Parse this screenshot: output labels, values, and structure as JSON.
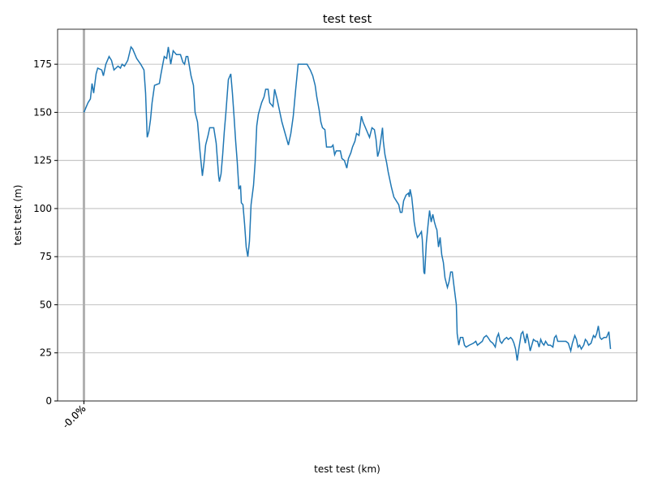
{
  "chart_data": {
    "type": "line",
    "title": "test test",
    "xlabel": "test test (km)",
    "ylabel": "test test (m)",
    "x": [
      0,
      5,
      8,
      10,
      12,
      15,
      17,
      22,
      24,
      27,
      31,
      34,
      37,
      42,
      45,
      47,
      50,
      54,
      58,
      60,
      65,
      70,
      74,
      76,
      78,
      80,
      82,
      84,
      87,
      93,
      95,
      99,
      102,
      104,
      107,
      110,
      114,
      119,
      122,
      124,
      126,
      128,
      130,
      132,
      135,
      137,
      140,
      143,
      146,
      148,
      150,
      153,
      155,
      160,
      163,
      166,
      167,
      169,
      171,
      173,
      175,
      178,
      181,
      183,
      185,
      187,
      189,
      191,
      193,
      194,
      196,
      198,
      200,
      202,
      204,
      206,
      209,
      211,
      213,
      215,
      217,
      219,
      222,
      224,
      227,
      229,
      233,
      235,
      238,
      241,
      244,
      248,
      252,
      255,
      258,
      261,
      264,
      268,
      275,
      279,
      282,
      285,
      287,
      290,
      292,
      294,
      297,
      299,
      305,
      307,
      309,
      311,
      316,
      318,
      321,
      324,
      326,
      329,
      331,
      334,
      336,
      339,
      342,
      344,
      348,
      352,
      355,
      358,
      360,
      362,
      364,
      366,
      368,
      369,
      371,
      373,
      375,
      379,
      382,
      385,
      388,
      390,
      392,
      394,
      397,
      400,
      401,
      402,
      404,
      406,
      407,
      409,
      411,
      413,
      416,
      417,
      419,
      420,
      422,
      424,
      426,
      428,
      430,
      432,
      434,
      435,
      437,
      439,
      441,
      443,
      445,
      448,
      450,
      452,
      454,
      456,
      459,
      460,
      462,
      464,
      467,
      469,
      471,
      475,
      480,
      483,
      485,
      488,
      491,
      493,
      496,
      498,
      501,
      504,
      507,
      509,
      511,
      513,
      515,
      518,
      521,
      523,
      526,
      528,
      530,
      532,
      534,
      536,
      539,
      541,
      544,
      546,
      548,
      550,
      552,
      554,
      557,
      559,
      561,
      563,
      565,
      567,
      569,
      572,
      575,
      578,
      580,
      582,
      584,
      587,
      590,
      594,
      597,
      600,
      602,
      605,
      607,
      609,
      611,
      613,
      616,
      618,
      620,
      622,
      625,
      628,
      630,
      632,
      634,
      636,
      638,
      641,
      644,
      647,
      649
    ],
    "series": [
      {
        "name": "test test",
        "color": "#1f77b4",
        "values": [
          150,
          155,
          157,
          165,
          160,
          170,
          173,
          172,
          169,
          175,
          179,
          177,
          172,
          174,
          173,
          175,
          174,
          177,
          184,
          183,
          178,
          175,
          172,
          160,
          137,
          140,
          146,
          155,
          164,
          165,
          170,
          179,
          178,
          184,
          175,
          182,
          180,
          180,
          176,
          175,
          179,
          179,
          174,
          169,
          164,
          150,
          145,
          130,
          117,
          124,
          133,
          138,
          142,
          142,
          134,
          117,
          114,
          118,
          128,
          140,
          150,
          167,
          170,
          160,
          148,
          135,
          124,
          110,
          112,
          103,
          102,
          92,
          80,
          75,
          83,
          102,
          112,
          124,
          143,
          149,
          152,
          155,
          158,
          162,
          162,
          155,
          153,
          162,
          157,
          151,
          145,
          139,
          133,
          139,
          148,
          162,
          175,
          175,
          175,
          172,
          169,
          164,
          158,
          151,
          145,
          142,
          141,
          132,
          132,
          133,
          128,
          130,
          130,
          126,
          125,
          121,
          126,
          129,
          132,
          135,
          139,
          138,
          148,
          145,
          141,
          137,
          142,
          141,
          136,
          127,
          130,
          136,
          142,
          135,
          128,
          124,
          119,
          111,
          106,
          104,
          102,
          98,
          98,
          104,
          107,
          108,
          106,
          110,
          106,
          98,
          93,
          88,
          85,
          86,
          88,
          84,
          67,
          66,
          82,
          91,
          99,
          93,
          97,
          93,
          90,
          89,
          80,
          85,
          76,
          72,
          64,
          59,
          62,
          67,
          67,
          60,
          50,
          35,
          29,
          33,
          33,
          29,
          28,
          29,
          30,
          31,
          29,
          30,
          31,
          33,
          34,
          33,
          31,
          30,
          28,
          33,
          35,
          31,
          30,
          32,
          33,
          32,
          33,
          32,
          30,
          27,
          21,
          27,
          35,
          36,
          30,
          35,
          31,
          26,
          29,
          32,
          31,
          31,
          28,
          32,
          30,
          29,
          31,
          29,
          29,
          28,
          33,
          34,
          31,
          31,
          31,
          31,
          30,
          26,
          30,
          34,
          32,
          28,
          29,
          27,
          29,
          32,
          31,
          29,
          30,
          34,
          33,
          35,
          39,
          33,
          32,
          33,
          33,
          36,
          27
        ]
      }
    ],
    "xlim": [
      -32.45,
      681.45
    ],
    "xticks": [
      {
        "value": 0,
        "label": "-0.0%"
      },
      {
        "value": 0,
        "label": "0.0%"
      }
    ],
    "ylim": [
      0,
      193.2
    ],
    "yticks": [
      0,
      25,
      50,
      75,
      100,
      125,
      150,
      175
    ],
    "grid": true,
    "vline": 0
  }
}
